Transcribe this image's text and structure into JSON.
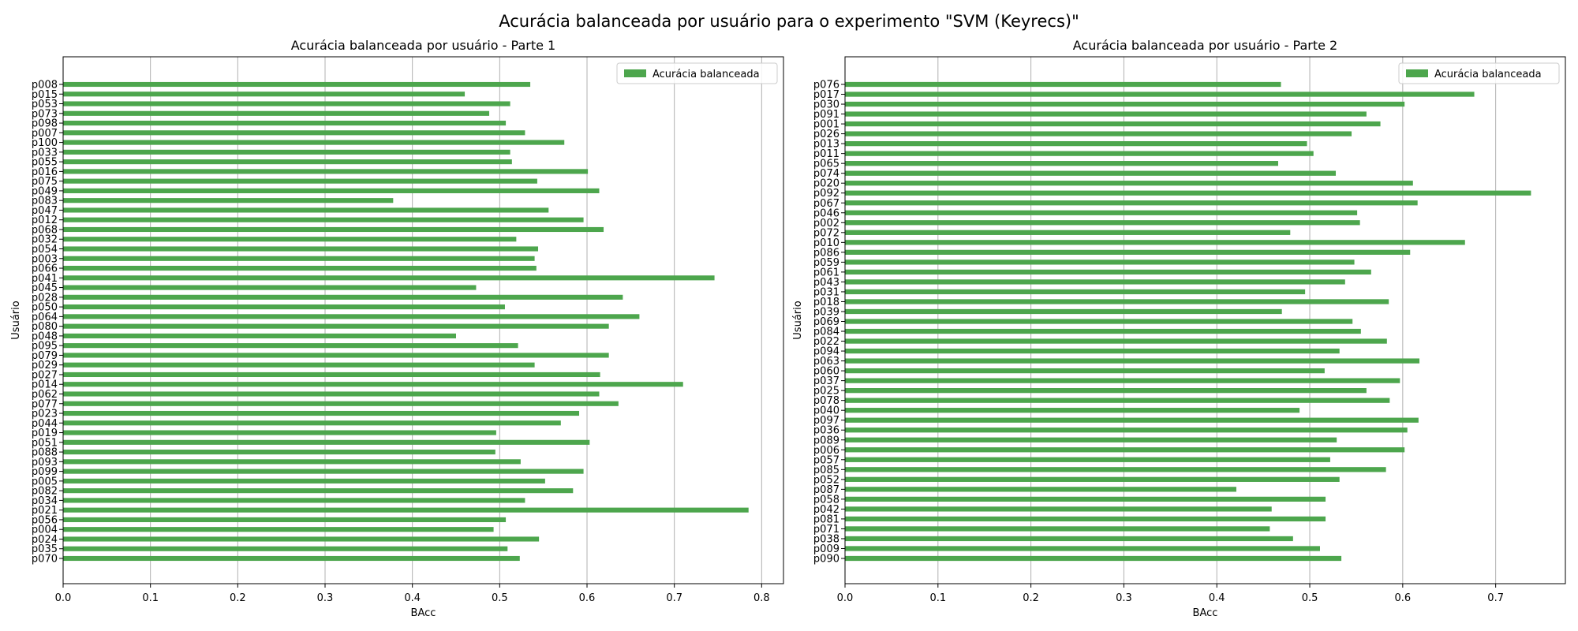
{
  "figure_title": "Acurácia balanceada por usuário para o experimento \"SVM (Keyrecs)\"",
  "colors": {
    "bar": "#4da64d",
    "grid": "#b0b0b0",
    "axis": "#000000",
    "legend_border": "#cccccc"
  },
  "chart_data": [
    {
      "type": "bar",
      "orientation": "horizontal",
      "title": "Acurácia balanceada por usuário - Parte 1",
      "xlabel": "BAcc",
      "ylabel": "Usuário",
      "xlim": [
        0,
        0.825
      ],
      "xticks": [
        0.0,
        0.1,
        0.2,
        0.3,
        0.4,
        0.5,
        0.6,
        0.7,
        0.8
      ],
      "grid": "x",
      "legend": {
        "position": "top-right",
        "entries": [
          "Acurácia balanceada"
        ]
      },
      "series": [
        {
          "name": "Acurácia balanceada"
        }
      ],
      "categories": [
        "p008",
        "p015",
        "p053",
        "p073",
        "p098",
        "p007",
        "p100",
        "p033",
        "p055",
        "p016",
        "p075",
        "p049",
        "p083",
        "p047",
        "p012",
        "p068",
        "p032",
        "p054",
        "p003",
        "p066",
        "p041",
        "p045",
        "p028",
        "p050",
        "p064",
        "p080",
        "p048",
        "p095",
        "p079",
        "p029",
        "p027",
        "p014",
        "p062",
        "p077",
        "p023",
        "p044",
        "p019",
        "p051",
        "p088",
        "p093",
        "p099",
        "p005",
        "p082",
        "p034",
        "p021",
        "p056",
        "p004",
        "p024",
        "p035",
        "p070"
      ],
      "values": [
        0.535,
        0.46,
        0.512,
        0.488,
        0.507,
        0.529,
        0.574,
        0.512,
        0.514,
        0.601,
        0.543,
        0.614,
        0.378,
        0.556,
        0.596,
        0.619,
        0.519,
        0.544,
        0.54,
        0.542,
        0.746,
        0.473,
        0.641,
        0.506,
        0.66,
        0.625,
        0.45,
        0.521,
        0.625,
        0.54,
        0.615,
        0.71,
        0.614,
        0.636,
        0.591,
        0.57,
        0.496,
        0.603,
        0.495,
        0.524,
        0.596,
        0.552,
        0.584,
        0.529,
        0.785,
        0.507,
        0.493,
        0.545,
        0.509,
        0.523
      ]
    },
    {
      "type": "bar",
      "orientation": "horizontal",
      "title": "Acurácia balanceada por usuário - Parte 2",
      "xlabel": "BAcc",
      "ylabel": "Usuário",
      "xlim": [
        0,
        0.775
      ],
      "xticks": [
        0.0,
        0.1,
        0.2,
        0.3,
        0.4,
        0.5,
        0.6,
        0.7
      ],
      "grid": "x",
      "legend": {
        "position": "top-right",
        "entries": [
          "Acurácia balanceada"
        ]
      },
      "series": [
        {
          "name": "Acurácia balanceada"
        }
      ],
      "categories": [
        "p076",
        "p017",
        "p030",
        "p091",
        "p001",
        "p026",
        "p013",
        "p011",
        "p065",
        "p074",
        "p020",
        "p092",
        "p067",
        "p046",
        "p002",
        "p072",
        "p010",
        "p086",
        "p059",
        "p061",
        "p043",
        "p031",
        "p018",
        "p039",
        "p069",
        "p084",
        "p022",
        "p094",
        "p063",
        "p060",
        "p037",
        "p025",
        "p078",
        "p040",
        "p097",
        "p036",
        "p089",
        "p006",
        "p057",
        "p085",
        "p052",
        "p087",
        "p058",
        "p042",
        "p081",
        "p071",
        "p038",
        "p009",
        "p090"
      ],
      "values": [
        0.469,
        0.677,
        0.602,
        0.561,
        0.576,
        0.545,
        0.497,
        0.504,
        0.466,
        0.528,
        0.611,
        0.738,
        0.616,
        0.551,
        0.554,
        0.479,
        0.667,
        0.608,
        0.548,
        0.566,
        0.538,
        0.495,
        0.585,
        0.47,
        0.546,
        0.555,
        0.583,
        0.532,
        0.618,
        0.516,
        0.597,
        0.561,
        0.586,
        0.489,
        0.617,
        0.605,
        0.529,
        0.602,
        0.522,
        0.582,
        0.532,
        0.421,
        0.517,
        0.459,
        0.517,
        0.457,
        0.482,
        0.511,
        0.534
      ]
    }
  ]
}
